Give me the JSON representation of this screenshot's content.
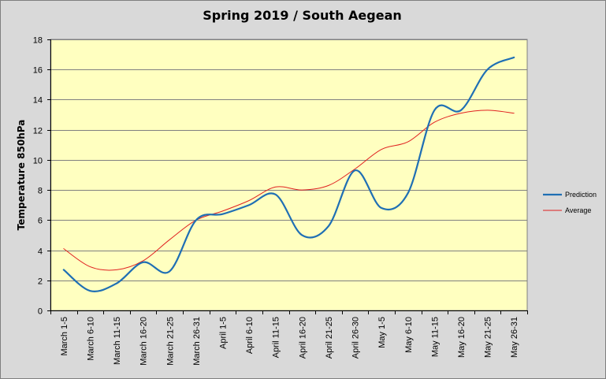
{
  "chart_data": {
    "type": "line",
    "title": "Spring 2019 / South Aegean",
    "xlabel": "",
    "ylabel": "Temperature 850hPa",
    "ylim": [
      0,
      18
    ],
    "yticks": [
      0,
      2,
      4,
      6,
      8,
      10,
      12,
      14,
      16,
      18
    ],
    "grid": true,
    "legend_position": "right",
    "categories": [
      "March 1-5",
      "March 6-10",
      "March 11-15",
      "March 16-20",
      "March 21-25",
      "March 26-31",
      "April 1-5",
      "April 6-10",
      "April 11-15",
      "April 16-20",
      "April 21-25",
      "April 26-30",
      "May 1-5",
      "May 6-10",
      "May 11-15",
      "May 16-20",
      "May 21-25",
      "May 26-31"
    ],
    "series": [
      {
        "name": "Prediction",
        "color": "#1f6fb4",
        "width": 2.2,
        "values": [
          2.7,
          1.3,
          1.8,
          3.2,
          2.6,
          6.0,
          6.4,
          7.0,
          7.7,
          5.0,
          5.6,
          9.3,
          6.8,
          7.8,
          13.3,
          13.3,
          16.0,
          16.8
        ]
      },
      {
        "name": "Average",
        "color": "#e02020",
        "width": 1.0,
        "values": [
          4.1,
          2.9,
          2.7,
          3.3,
          4.7,
          6.0,
          6.6,
          7.3,
          8.2,
          8.0,
          8.3,
          9.4,
          10.7,
          11.2,
          12.5,
          13.1,
          13.3,
          13.1
        ]
      }
    ],
    "colors": {
      "plot_background": "#ffffc0",
      "chart_background": "#d9d9d9",
      "gridline": "#808080"
    }
  }
}
